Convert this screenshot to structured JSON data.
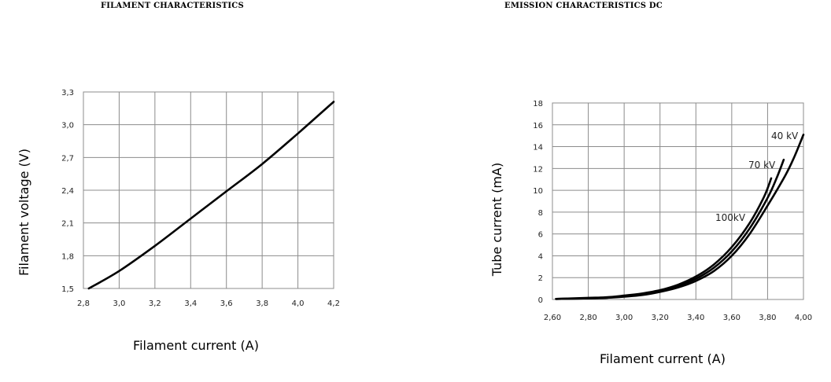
{
  "chart_data": [
    {
      "type": "line",
      "title": "FILAMENT CHARACTERISTICS",
      "xlabel": "Filament current (A)",
      "ylabel": "Filament voltage (V)",
      "xlim": [
        2.8,
        4.2
      ],
      "ylim": [
        1.5,
        3.3
      ],
      "x_ticks": [
        "2,8",
        "3,0",
        "3,2",
        "3,4",
        "3,6",
        "3,8",
        "4,0",
        "4,2"
      ],
      "y_ticks": [
        "1,5",
        "1,8",
        "2,1",
        "2,4",
        "2,7",
        "3,0",
        "3,3"
      ],
      "grid": true,
      "series": [
        {
          "x": [
            2.83,
            3.0,
            3.2,
            3.4,
            3.6,
            3.8,
            4.0,
            4.2
          ],
          "y": [
            1.5,
            1.66,
            1.89,
            2.14,
            2.39,
            2.64,
            2.92,
            3.21
          ]
        }
      ]
    },
    {
      "type": "line",
      "title": "EMISSION CHARACTERISTICS DC",
      "xlabel": "Filament current (A)",
      "ylabel": "Tube current (mA)",
      "xlim": [
        2.6,
        4.0
      ],
      "ylim": [
        0,
        18
      ],
      "x_ticks": [
        "2,60",
        "2,80",
        "3,00",
        "3,20",
        "3,40",
        "3,60",
        "3,80",
        "4,00"
      ],
      "y_ticks": [
        "0",
        "2",
        "4",
        "6",
        "8",
        "10",
        "12",
        "14",
        "16",
        "18"
      ],
      "grid": true,
      "series": [
        {
          "name": "40 kV",
          "x": [
            2.62,
            2.8,
            2.9,
            3.0,
            3.1,
            3.2,
            3.3,
            3.4,
            3.5,
            3.6,
            3.7,
            3.8,
            3.9,
            3.95,
            4.0
          ],
          "y": [
            0.05,
            0.1,
            0.15,
            0.25,
            0.4,
            0.7,
            1.1,
            1.7,
            2.6,
            4.0,
            6.0,
            8.6,
            11.4,
            13.1,
            15.1
          ]
        },
        {
          "name": "70 kV",
          "x": [
            2.62,
            2.8,
            2.9,
            3.0,
            3.1,
            3.2,
            3.3,
            3.4,
            3.5,
            3.6,
            3.7,
            3.8,
            3.85,
            3.89
          ],
          "y": [
            0.05,
            0.1,
            0.15,
            0.3,
            0.5,
            0.8,
            1.25,
            1.9,
            2.9,
            4.4,
            6.5,
            9.3,
            11.1,
            12.8
          ]
        },
        {
          "name": "100kV",
          "x": [
            2.62,
            2.8,
            2.9,
            3.0,
            3.1,
            3.2,
            3.3,
            3.4,
            3.5,
            3.6,
            3.7,
            3.78,
            3.82
          ],
          "y": [
            0.05,
            0.15,
            0.2,
            0.35,
            0.55,
            0.85,
            1.35,
            2.1,
            3.2,
            4.8,
            7.0,
            9.4,
            11.1
          ]
        }
      ]
    }
  ]
}
